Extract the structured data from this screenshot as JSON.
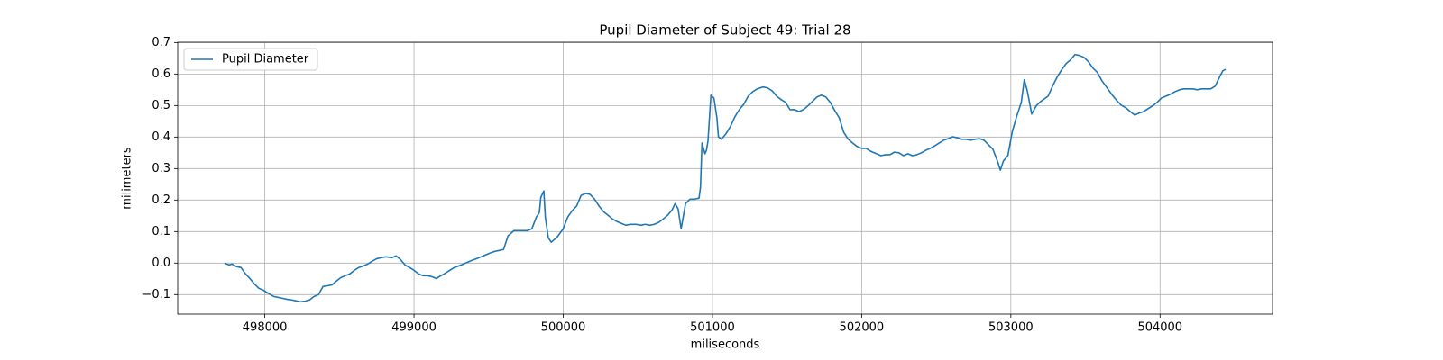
{
  "chart_data": {
    "type": "line",
    "title": "Pupil Diameter of Subject 49: Trial 28",
    "xlabel": "miliseconds",
    "ylabel": "milimeters",
    "xlim": [
      497416,
      504754
    ],
    "ylim": [
      -0.162,
      0.701
    ],
    "xticks": [
      498000,
      499000,
      500000,
      501000,
      502000,
      503000,
      504000
    ],
    "yticks": [
      {
        "value": -0.1,
        "label": "−0.1"
      },
      {
        "value": 0,
        "label": "0.0"
      },
      0.1,
      0.2,
      0.3,
      0.4,
      0.5,
      0.6,
      0.7
    ],
    "grid": true,
    "legend": "upper left",
    "x": [
      497730,
      497760,
      497780,
      497810,
      497840,
      497870,
      497900,
      497930,
      497960,
      497990,
      498020,
      498060,
      498090,
      498120,
      498150,
      498180,
      498210,
      498240,
      498270,
      498300,
      498330,
      498360,
      498390,
      498420,
      498450,
      498480,
      498510,
      498540,
      498570,
      498600,
      498630,
      498660,
      498690,
      498720,
      498750,
      498780,
      498810,
      498850,
      498880,
      498910,
      498940,
      498970,
      499000,
      499030,
      499060,
      499090,
      499120,
      499150,
      499180,
      499210,
      499240,
      499270,
      499300,
      499330,
      499360,
      499390,
      499420,
      499450,
      499480,
      499510,
      499540,
      499570,
      499600,
      499630,
      499670,
      499700,
      499730,
      499760,
      499790,
      499820,
      499840,
      499850,
      499870,
      499880,
      499900,
      499920,
      499960,
      500000,
      500030,
      500060,
      500090,
      500120,
      500150,
      500180,
      500210,
      500240,
      500270,
      500300,
      500330,
      500360,
      500390,
      500420,
      500450,
      500490,
      500520,
      500550,
      500580,
      500610,
      500640,
      500670,
      500700,
      500730,
      500750,
      500770,
      500790,
      500800,
      500820,
      500850,
      500880,
      500910,
      500920,
      500930,
      500950,
      500960,
      500970,
      500990,
      501010,
      501030,
      501040,
      501060,
      501090,
      501120,
      501150,
      501180,
      501210,
      501240,
      501270,
      501300,
      501340,
      501370,
      501400,
      501430,
      501460,
      501490,
      501520,
      501550,
      501580,
      501610,
      501640,
      501670,
      501700,
      501730,
      501760,
      501790,
      501820,
      501850,
      501880,
      501910,
      501940,
      501970,
      502000,
      502030,
      502060,
      502100,
      502130,
      502160,
      502190,
      502220,
      502250,
      502280,
      502310,
      502340,
      502370,
      502400,
      502430,
      502460,
      502490,
      502520,
      502550,
      502580,
      502610,
      502640,
      502670,
      502700,
      502730,
      502760,
      502790,
      502820,
      502880,
      502910,
      502930,
      502950,
      502980,
      503010,
      503040,
      503070,
      503090,
      503110,
      503140,
      503170,
      503200,
      503250,
      503280,
      503310,
      503340,
      503370,
      503400,
      503430,
      503460,
      503490,
      503520,
      503550,
      503580,
      503610,
      503650,
      503680,
      503710,
      503740,
      503770,
      503800,
      503830,
      503860,
      503890,
      503920,
      503950,
      503980,
      504010,
      504040,
      504070,
      504100,
      504130,
      504160,
      504190,
      504220,
      504250,
      504280,
      504340,
      504370,
      504390,
      504420,
      504440
    ],
    "series": [
      {
        "name": "Pupil Diameter",
        "color": "#1f77b4",
        "values": [
          0,
          -0.006,
          -0.003,
          -0.011,
          -0.014,
          -0.034,
          -0.049,
          -0.066,
          -0.08,
          -0.086,
          -0.095,
          -0.106,
          -0.109,
          -0.112,
          -0.115,
          -0.117,
          -0.12,
          -0.123,
          -0.121,
          -0.117,
          -0.106,
          -0.1,
          -0.074,
          -0.072,
          -0.069,
          -0.057,
          -0.046,
          -0.04,
          -0.034,
          -0.023,
          -0.014,
          -0.009,
          -0.003,
          0.006,
          0.014,
          0.017,
          0.02,
          0.017,
          0.023,
          0.011,
          -0.006,
          -0.014,
          -0.023,
          -0.034,
          -0.04,
          -0.04,
          -0.043,
          -0.049,
          -0.04,
          -0.032,
          -0.023,
          -0.014,
          -0.009,
          -0.003,
          0.003,
          0.009,
          0.014,
          0.02,
          0.026,
          0.032,
          0.037,
          0.04,
          0.043,
          0.086,
          0.103,
          0.103,
          0.103,
          0.103,
          0.109,
          0.146,
          0.16,
          0.209,
          0.229,
          0.146,
          0.08,
          0.066,
          0.083,
          0.109,
          0.146,
          0.166,
          0.181,
          0.215,
          0.221,
          0.218,
          0.203,
          0.181,
          0.163,
          0.152,
          0.14,
          0.132,
          0.126,
          0.12,
          0.123,
          0.123,
          0.12,
          0.123,
          0.12,
          0.123,
          0.129,
          0.14,
          0.152,
          0.169,
          0.189,
          0.172,
          0.109,
          0.135,
          0.189,
          0.203,
          0.203,
          0.206,
          0.241,
          0.381,
          0.347,
          0.358,
          0.387,
          0.533,
          0.524,
          0.461,
          0.401,
          0.393,
          0.41,
          0.433,
          0.464,
          0.487,
          0.504,
          0.53,
          0.544,
          0.553,
          0.559,
          0.556,
          0.547,
          0.53,
          0.519,
          0.51,
          0.487,
          0.487,
          0.481,
          0.487,
          0.499,
          0.513,
          0.527,
          0.533,
          0.527,
          0.51,
          0.484,
          0.461,
          0.415,
          0.393,
          0.381,
          0.37,
          0.364,
          0.364,
          0.355,
          0.347,
          0.341,
          0.344,
          0.344,
          0.352,
          0.35,
          0.341,
          0.347,
          0.341,
          0.344,
          0.35,
          0.358,
          0.364,
          0.372,
          0.381,
          0.39,
          0.395,
          0.401,
          0.398,
          0.393,
          0.393,
          0.39,
          0.393,
          0.395,
          0.39,
          0.361,
          0.324,
          0.295,
          0.324,
          0.341,
          0.418,
          0.467,
          0.51,
          0.582,
          0.547,
          0.473,
          0.499,
          0.513,
          0.53,
          0.562,
          0.59,
          0.613,
          0.633,
          0.645,
          0.662,
          0.659,
          0.653,
          0.639,
          0.619,
          0.605,
          0.579,
          0.553,
          0.533,
          0.516,
          0.501,
          0.493,
          0.481,
          0.47,
          0.476,
          0.481,
          0.49,
          0.499,
          0.51,
          0.524,
          0.53,
          0.536,
          0.544,
          0.55,
          0.553,
          0.553,
          0.553,
          0.55,
          0.553,
          0.553,
          0.562,
          0.582,
          0.61,
          0.615
        ]
      }
    ]
  }
}
